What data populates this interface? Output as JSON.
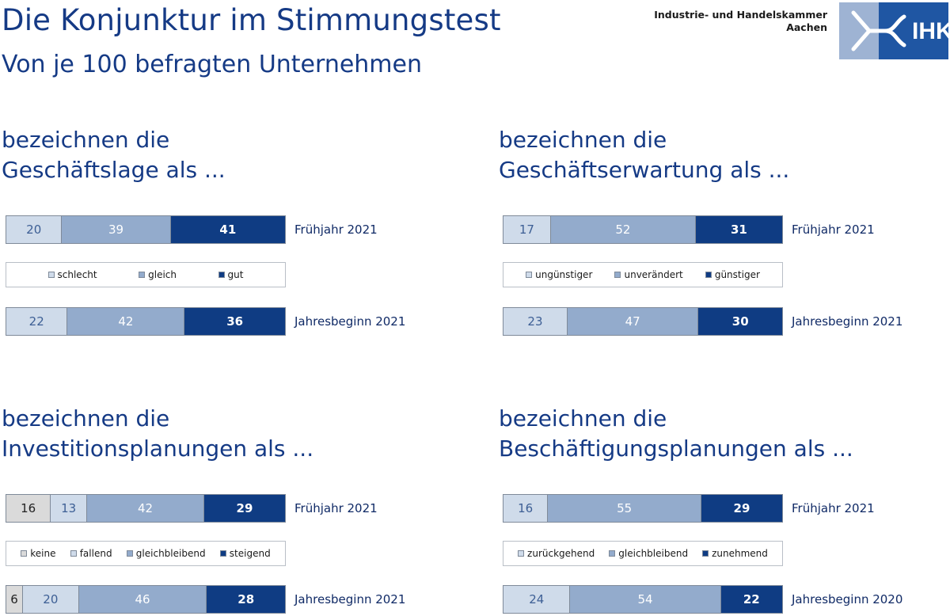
{
  "title": "Die Konjunktur im Stimmungstest",
  "subtitle": "Von je 100 befragten Unternehmen",
  "org": {
    "line1": "Industrie- und Handelskammer",
    "line2": "Aachen",
    "logo_text": "IHK"
  },
  "colors": {
    "dark": "#0f3c83",
    "mid": "#93abcc",
    "light": "#cfdbea",
    "gray": "#dadada",
    "title": "#153a85"
  },
  "chart_data": [
    {
      "type": "bar",
      "stacked": true,
      "orientation": "horizontal",
      "title": [
        "bezeichnen die",
        "Geschäftslage als ..."
      ],
      "categories": [
        "Frühjahr 2021",
        "Jahresbeginn 2021"
      ],
      "series": [
        {
          "name": "schlecht",
          "color": "light",
          "values": [
            20,
            22
          ]
        },
        {
          "name": "gleich",
          "color": "mid",
          "values": [
            39,
            42
          ]
        },
        {
          "name": "gut",
          "color": "dark",
          "values": [
            41,
            36
          ]
        }
      ]
    },
    {
      "type": "bar",
      "stacked": true,
      "orientation": "horizontal",
      "title": [
        "bezeichnen die",
        "Geschäftserwartung als ..."
      ],
      "categories": [
        "Frühjahr 2021",
        "Jahresbeginn 2021"
      ],
      "series": [
        {
          "name": "ungünstiger",
          "color": "light",
          "values": [
            17,
            23
          ]
        },
        {
          "name": "unverändert",
          "color": "mid",
          "values": [
            52,
            47
          ]
        },
        {
          "name": "günstiger",
          "color": "dark",
          "values": [
            31,
            30
          ]
        }
      ]
    },
    {
      "type": "bar",
      "stacked": true,
      "orientation": "horizontal",
      "title": [
        "bezeichnen die",
        "Investitionsplanungen als ..."
      ],
      "categories": [
        "Frühjahr 2021",
        "Jahresbeginn 2021"
      ],
      "series": [
        {
          "name": "keine",
          "color": "gray",
          "values": [
            16,
            6
          ]
        },
        {
          "name": "fallend",
          "color": "light",
          "values": [
            13,
            20
          ]
        },
        {
          "name": "gleichbleibend",
          "color": "mid",
          "values": [
            42,
            46
          ]
        },
        {
          "name": "steigend",
          "color": "dark",
          "values": [
            29,
            28
          ]
        }
      ]
    },
    {
      "type": "bar",
      "stacked": true,
      "orientation": "horizontal",
      "title": [
        "bezeichnen die",
        "Beschäftigungsplanungen als ..."
      ],
      "categories": [
        "Frühjahr 2021",
        "Jahresbeginn 2020"
      ],
      "series": [
        {
          "name": "zurückgehend",
          "color": "light",
          "values": [
            16,
            24
          ]
        },
        {
          "name": "gleichbleibend",
          "color": "mid",
          "values": [
            55,
            54
          ]
        },
        {
          "name": "zunehmend",
          "color": "dark",
          "values": [
            29,
            22
          ]
        }
      ]
    }
  ]
}
